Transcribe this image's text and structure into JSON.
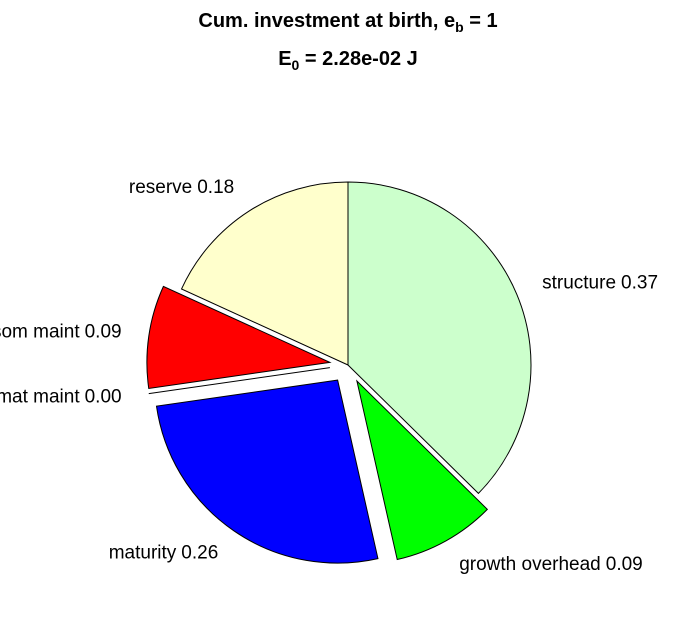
{
  "chart_data": {
    "type": "pie",
    "title": "Cum. investment at birth, e_b = 1",
    "subtitle": "E_0 = 2.28e-02 J",
    "categories": [
      "structure",
      "growth overhead",
      "maturity",
      "mat maint",
      "som maint",
      "reserve"
    ],
    "values": [
      0.37,
      0.09,
      0.26,
      0.0,
      0.09,
      0.18
    ],
    "value_labels": [
      "0.37",
      "0.09",
      "0.26",
      "0.00",
      "0.09",
      "0.18"
    ],
    "colors": [
      "#ccffcc",
      "#00ff00",
      "#0000ff",
      "#ffffff",
      "#ff0000",
      "#ffffcc"
    ],
    "explode": [
      false,
      true,
      true,
      true,
      true,
      false
    ]
  }
}
